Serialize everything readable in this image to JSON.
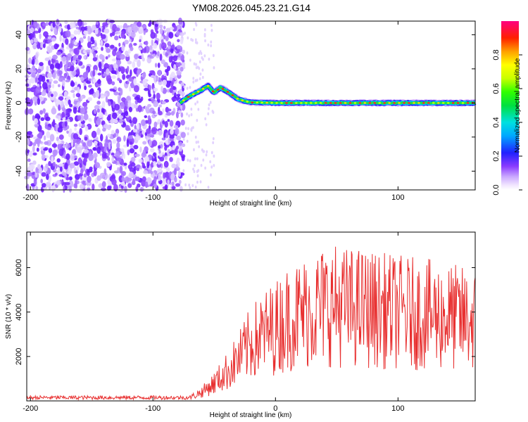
{
  "title": "YM08.2026.045.23.21.G14",
  "chart_data": [
    {
      "type": "heatmap",
      "xlabel": "Height of straight line (km)",
      "ylabel": "Frequency (Hz)",
      "xlim": [
        -203,
        163
      ],
      "ylim": [
        -51,
        48
      ],
      "x_ticks": [
        -200,
        -100,
        0,
        100
      ],
      "y_ticks": [
        -40,
        -20,
        0,
        20,
        40
      ],
      "colorbar": {
        "label": "Normalized spectral amplitude",
        "range": [
          0,
          1
        ],
        "ticks": [
          0.0,
          0.2,
          0.4,
          0.6,
          0.8
        ],
        "colormap": "rainbow-magenta-red"
      },
      "ridge": {
        "x": [
          -78,
          -70,
          -62,
          -55,
          -50,
          -45,
          -40,
          -30,
          -20,
          -10,
          0,
          50,
          100,
          163
        ],
        "y": [
          0,
          4,
          7,
          10,
          6,
          9,
          7,
          2,
          0.3,
          0.2,
          0,
          0,
          0,
          0
        ]
      },
      "noise_region_x": [
        -203,
        -75
      ]
    },
    {
      "type": "line",
      "xlabel": "Height of straight line (km)",
      "ylabel": "SNR (10 * v/v)",
      "xlim": [
        -203,
        163
      ],
      "ylim": [
        0,
        7600
      ],
      "x_ticks": [
        -200,
        -100,
        0,
        100
      ],
      "y_ticks": [
        2000,
        4000,
        6000
      ],
      "line_color": "#e83030",
      "envelope": {
        "x": [
          -203,
          -70,
          -60,
          -50,
          -40,
          -30,
          -20,
          -10,
          0,
          10,
          20,
          30,
          40,
          50,
          60,
          70,
          80,
          100,
          120,
          140,
          163
        ],
        "y": [
          150,
          150,
          400,
          800,
          1300,
          1900,
          2600,
          3000,
          3300,
          3700,
          3900,
          4100,
          4300,
          4300,
          4200,
          4200,
          4100,
          4000,
          3900,
          3800,
          3600
        ]
      }
    }
  ]
}
